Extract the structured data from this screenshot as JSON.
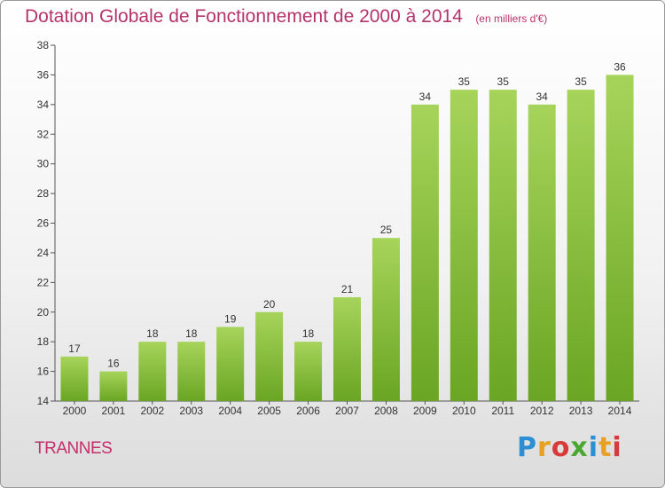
{
  "title": "Dotation Globale de Fonctionnement de 2000 à 2014",
  "subtitle": "(en milliers d'€)",
  "commune": "TRANNES",
  "brand": {
    "letters": [
      "P",
      "r",
      "o",
      "x",
      "i",
      "t",
      "i"
    ],
    "colors": [
      "#2b8fd6",
      "#e8a020",
      "#d83a3a",
      "#4aa830",
      "#2b8fd6",
      "#e8a020",
      "#d83a3a"
    ]
  },
  "colors": {
    "title": "#b5336b",
    "bar_top": "#a6d45a",
    "bar_bottom": "#6aa523"
  },
  "chart_data": {
    "type": "bar",
    "title": "Dotation Globale de Fonctionnement de 2000 à 2014",
    "subtitle": "(en milliers d'€)",
    "categories": [
      "2000",
      "2001",
      "2002",
      "2003",
      "2004",
      "2005",
      "2006",
      "2007",
      "2008",
      "2009",
      "2010",
      "2011",
      "2012",
      "2013",
      "2014"
    ],
    "values": [
      17,
      16,
      18,
      18,
      19,
      20,
      18,
      21,
      25,
      34,
      35,
      35,
      34,
      35,
      36
    ],
    "ylim": [
      14,
      38
    ],
    "yticks": [
      14,
      16,
      18,
      20,
      22,
      24,
      26,
      28,
      30,
      32,
      34,
      36,
      38
    ],
    "grid": false,
    "legend": "none"
  }
}
